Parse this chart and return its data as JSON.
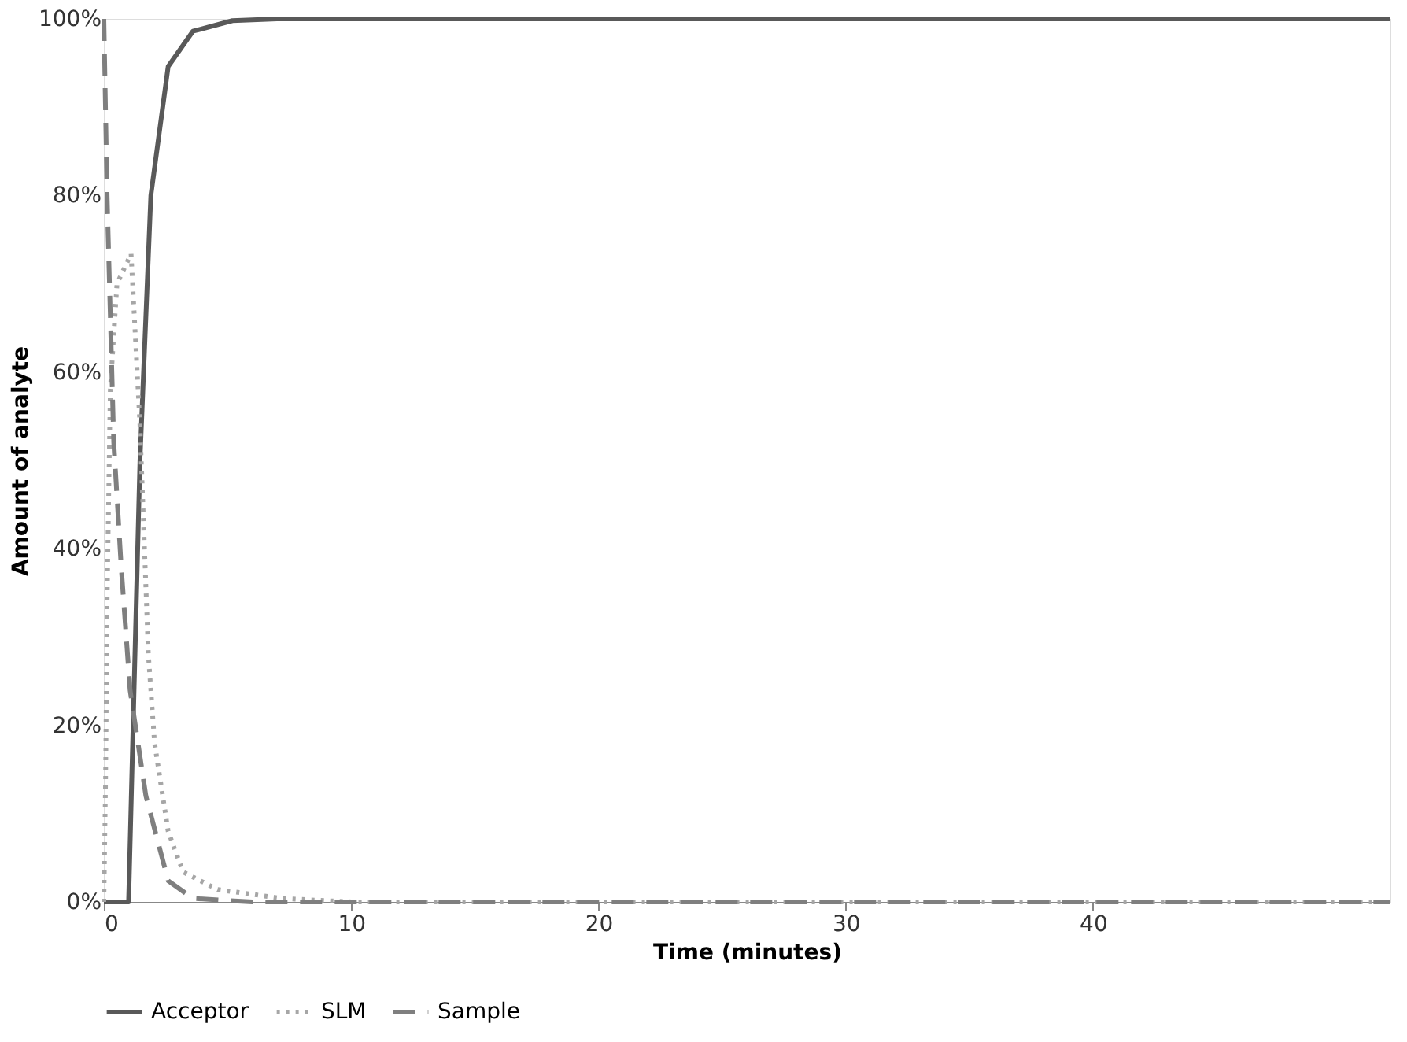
{
  "chart_data": {
    "type": "line",
    "xlabel": "Time (minutes)",
    "ylabel": "Amount of analyte",
    "xlim": [
      0,
      52
    ],
    "xticks": [
      0,
      10,
      20,
      30,
      40
    ],
    "ylim": [
      0,
      100
    ],
    "yticks": [
      {
        "value": 0,
        "label": "0%"
      },
      {
        "value": 20,
        "label": "20%"
      },
      {
        "value": 40,
        "label": "40%"
      },
      {
        "value": 60,
        "label": "60%"
      },
      {
        "value": 80,
        "label": "80%"
      },
      {
        "value": 100,
        "label": "100%"
      }
    ],
    "grid": false,
    "legend": "bottom",
    "marker": "none",
    "series": [
      {
        "name": "Acceptor",
        "color": "#595959",
        "line_style": "solid",
        "x": [
          0,
          1.0,
          1.46,
          1.9,
          2.6,
          3.6,
          5.2,
          7,
          20,
          52
        ],
        "values": [
          0,
          0,
          50,
          80,
          94.6,
          98.6,
          99.8,
          100,
          100,
          100
        ]
      },
      {
        "name": "SLM",
        "color": "#a6a6a6",
        "line_style": "dotted",
        "x": [
          0,
          0.07,
          0.13,
          0.26,
          0.53,
          1.1,
          1.46,
          1.8,
          2.05,
          2.6,
          3.2,
          4.6,
          7.2,
          10,
          52
        ],
        "values": [
          0,
          14,
          34,
          58,
          70,
          73.4,
          54,
          28,
          18,
          8,
          3.4,
          1.4,
          0.4,
          0,
          0
        ]
      },
      {
        "name": "Sample",
        "color": "#7f7f7f",
        "line_style": "dashed",
        "x": [
          0,
          0.13,
          0.4,
          0.7,
          1.06,
          1.7,
          2.6,
          3.6,
          6,
          52
        ],
        "values": [
          100,
          80,
          52,
          38,
          24,
          12,
          2.4,
          0.4,
          0,
          0
        ]
      }
    ]
  }
}
